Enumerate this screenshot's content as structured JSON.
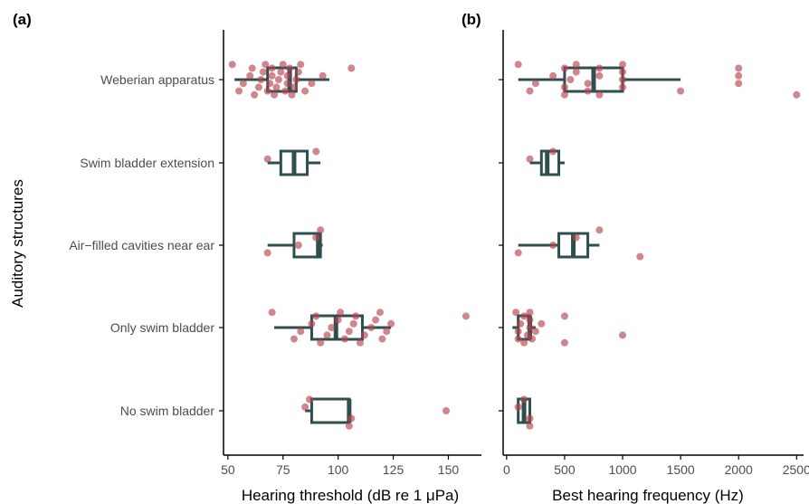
{
  "colors": {
    "box": "#2f4f4f",
    "point": "#b5454f",
    "axis": "#000000",
    "tick_text": "#4d4d4d"
  },
  "shared_ylabel": "Auditory structures",
  "categories": [
    "Weberian apparatus",
    "Swim bladder extension",
    "Air−filled cavities near ear",
    "Only swim bladder",
    "No swim bladder"
  ],
  "chart_data": [
    {
      "type": "boxplot",
      "panel_label": "(a)",
      "xlabel": "Hearing threshold (dB re 1 μPa)",
      "ylabel": "Auditory structures",
      "xlim": [
        48,
        165
      ],
      "xticks": [
        50,
        75,
        100,
        125,
        150
      ],
      "categories": [
        "Weberian apparatus",
        "Swim bladder extension",
        "Air−filled cavities near ear",
        "Only swim bladder",
        "No swim bladder"
      ],
      "boxes": [
        {
          "category": "Weberian apparatus",
          "lower_whisker": 53,
          "q1": 68,
          "median": 78,
          "q3": 81,
          "upper_whisker": 96
        },
        {
          "category": "Swim bladder extension",
          "lower_whisker": 68,
          "q1": 74,
          "median": 80,
          "q3": 86,
          "upper_whisker": 92
        },
        {
          "category": "Air−filled cavities near ear",
          "lower_whisker": 68,
          "q1": 80,
          "median": 91,
          "q3": 92,
          "upper_whisker": 93
        },
        {
          "category": "Only swim bladder",
          "lower_whisker": 71,
          "q1": 88,
          "median": 99,
          "q3": 111,
          "upper_whisker": 124
        },
        {
          "category": "No swim bladder",
          "lower_whisker": 85,
          "q1": 88,
          "median": 105,
          "q3": 105,
          "upper_whisker": 105
        }
      ],
      "points": [
        {
          "category": "Weberian apparatus",
          "values": [
            52,
            55,
            57,
            60,
            61,
            62,
            64,
            65,
            66,
            67,
            68,
            69,
            70,
            70,
            71,
            72,
            73,
            74,
            75,
            76,
            77,
            77,
            78,
            79,
            80,
            81,
            82,
            83,
            85,
            88,
            93,
            106
          ]
        },
        {
          "category": "Swim bladder extension",
          "values": [
            68,
            90
          ]
        },
        {
          "category": "Air−filled cavities near ear",
          "values": [
            68,
            82,
            90,
            92
          ]
        },
        {
          "category": "Only swim bladder",
          "values": [
            70,
            80,
            83,
            88,
            90,
            92,
            95,
            97,
            100,
            101,
            103,
            105,
            107,
            108,
            110,
            112,
            115,
            117,
            119,
            120,
            122,
            124,
            158
          ]
        },
        {
          "category": "No swim bladder",
          "values": [
            85,
            87,
            105,
            106,
            149
          ]
        }
      ]
    },
    {
      "type": "boxplot",
      "panel_label": "(b)",
      "xlabel": "Best hearing frequency (Hz)",
      "xlim": [
        -30,
        2560
      ],
      "xticks": [
        0,
        500,
        1000,
        1500,
        2000,
        2500
      ],
      "categories": [
        "Weberian apparatus",
        "Swim bladder extension",
        "Air−filled cavities near ear",
        "Only swim bladder",
        "No swim bladder"
      ],
      "boxes": [
        {
          "category": "Weberian apparatus",
          "lower_whisker": 100,
          "q1": 500,
          "median": 750,
          "q3": 1000,
          "upper_whisker": 1500
        },
        {
          "category": "Swim bladder extension",
          "lower_whisker": 200,
          "q1": 300,
          "median": 350,
          "q3": 450,
          "upper_whisker": 500
        },
        {
          "category": "Air−filled cavities near ear",
          "lower_whisker": 100,
          "q1": 450,
          "median": 575,
          "q3": 700,
          "upper_whisker": 800
        },
        {
          "category": "Only swim bladder",
          "lower_whisker": 50,
          "q1": 100,
          "median": 200,
          "q3": 200,
          "upper_whisker": 250
        },
        {
          "category": "No swim bladder",
          "lower_whisker": 100,
          "q1": 100,
          "median": 150,
          "q3": 200,
          "upper_whisker": 200
        }
      ],
      "points": [
        {
          "category": "Weberian apparatus",
          "values": [
            100,
            200,
            250,
            400,
            500,
            500,
            500,
            550,
            600,
            600,
            700,
            700,
            800,
            800,
            800,
            1000,
            1000,
            1000,
            1000,
            1500,
            2000,
            2000,
            2000,
            2500
          ]
        },
        {
          "category": "Swim bladder extension",
          "values": [
            200,
            400
          ]
        },
        {
          "category": "Air−filled cavities near ear",
          "values": [
            100,
            400,
            600,
            800,
            1150
          ]
        },
        {
          "category": "Only swim bladder",
          "values": [
            80,
            100,
            100,
            120,
            150,
            150,
            180,
            200,
            200,
            200,
            220,
            250,
            300,
            500,
            500,
            1000
          ]
        },
        {
          "category": "No swim bladder",
          "values": [
            100,
            150,
            200,
            200
          ]
        }
      ]
    }
  ]
}
